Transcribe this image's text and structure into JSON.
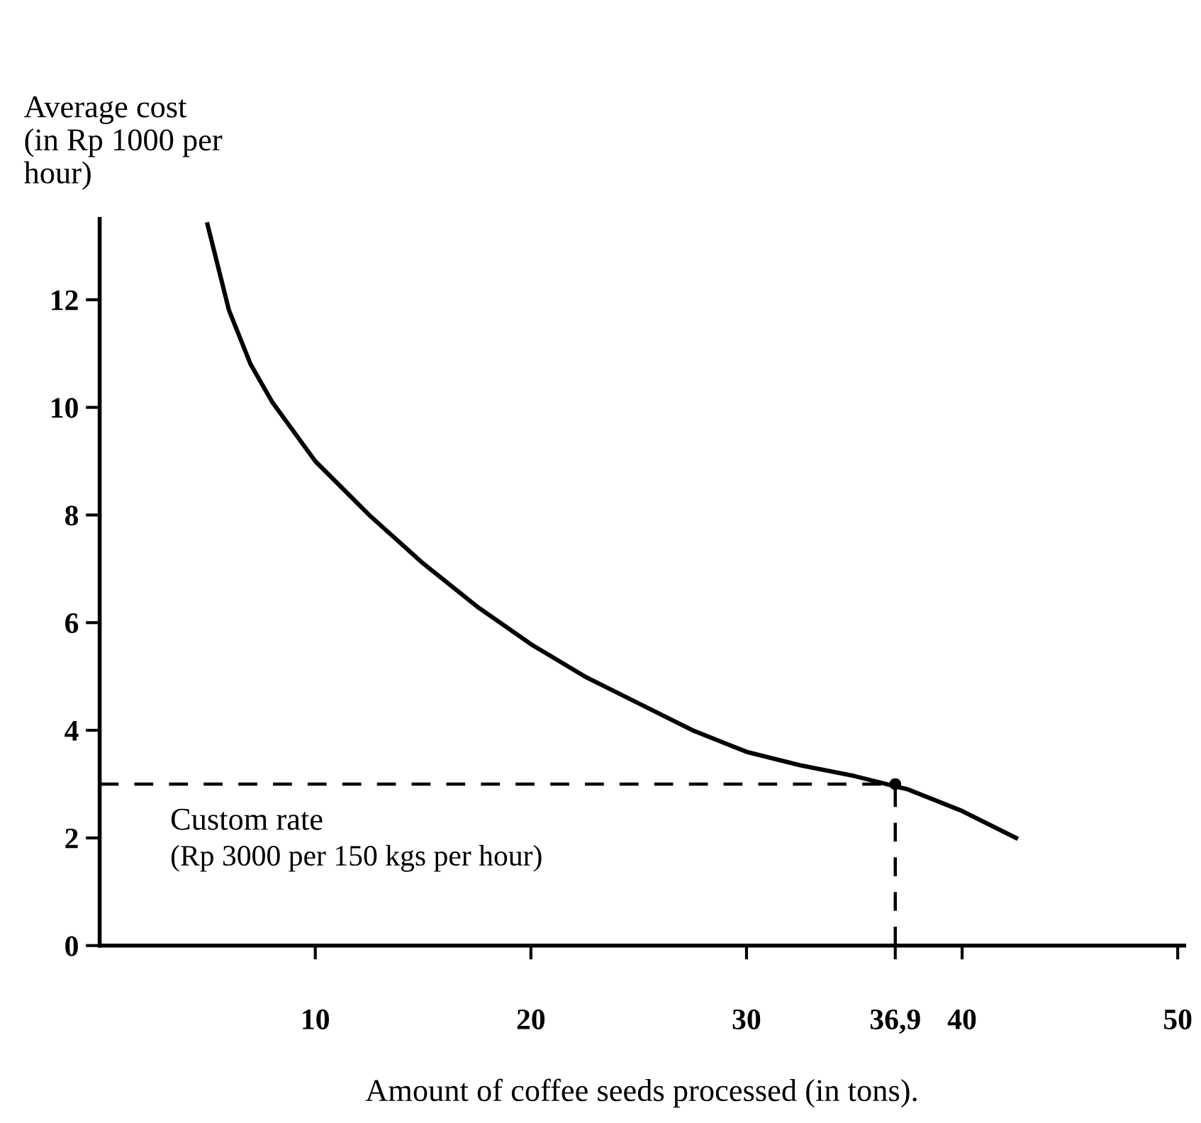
{
  "chart_data": {
    "type": "line",
    "ylabel": "Average cost\n(in Rp 1000 per\nhour)",
    "xlabel": "Amount of coffee seeds processed (in tons).",
    "x": [
      5.0,
      6,
      7,
      8,
      10,
      12.5,
      15,
      17.5,
      20,
      22.5,
      25,
      27.5,
      30,
      32.5,
      35,
      37.5,
      40,
      42.5
    ],
    "series": [
      {
        "color": "#000000",
        "values": [
          13.4,
          11.8,
          10.8,
          10.1,
          9.0,
          8.0,
          7.1,
          6.3,
          5.6,
          5.0,
          4.5,
          4.0,
          3.6,
          3.35,
          3.15,
          2.9,
          2.5,
          2.0
        ]
      },
      {
        "type": "scatter",
        "marker": "circle",
        "color": "#000000",
        "x": [
          36.9
        ],
        "values": [
          3
        ]
      }
    ],
    "ref_lines": [
      {
        "axis": "y",
        "value": 3,
        "line_style": "dashed",
        "color": "#000000"
      },
      {
        "axis": "x",
        "value": 36.9,
        "line_style": "dashed",
        "color": "#000000"
      }
    ],
    "annotations": [
      "Custom rate",
      "(Rp 3000 per 150 kgs per hour)"
    ],
    "xlim": [
      0,
      50.3
    ],
    "ylim": [
      0,
      13.5
    ],
    "xticks": [
      10,
      20,
      30,
      {
        "value": 36.9,
        "label": "36,9"
      },
      40,
      50
    ],
    "yticks": [
      0,
      2,
      4,
      6,
      8,
      10,
      12
    ]
  }
}
